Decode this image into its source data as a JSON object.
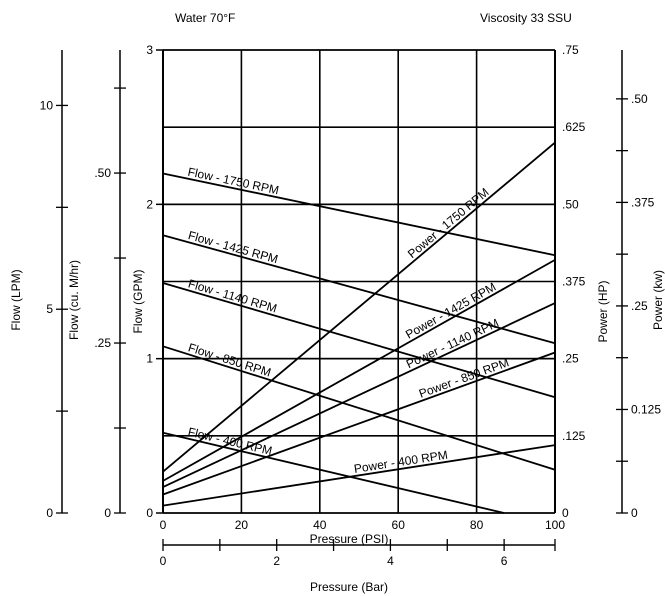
{
  "header": {
    "left": "Water 70°F",
    "right": "Viscosity 33 SSU"
  },
  "chart_data": {
    "type": "line",
    "x_axis": {
      "label": "Pressure (PSI)",
      "range": [
        0,
        100
      ],
      "ticks": [
        "0",
        "20",
        "40",
        "60",
        "80",
        "100"
      ]
    },
    "x_axis_secondary": {
      "label": "Pressure (Bar)",
      "range": [
        0,
        6.895
      ],
      "ticks": [
        "0",
        "2",
        "4",
        "6"
      ]
    },
    "y_axes_left": [
      {
        "label": "Flow (LPM)",
        "range": [
          0,
          11.36
        ],
        "ticks": [
          "0",
          "5",
          "10"
        ]
      },
      {
        "label": "Flow (cu. M/hr)",
        "range": [
          0,
          0.681
        ],
        "ticks": [
          "0",
          ".25",
          ".50"
        ]
      },
      {
        "label": "Flow (GPM)",
        "range": [
          0,
          3
        ],
        "ticks": [
          "0",
          "1",
          "2",
          "3"
        ]
      }
    ],
    "y_axes_right": [
      {
        "label": "Power (HP)",
        "range": [
          0,
          0.75
        ],
        "ticks": [
          "0",
          ".125",
          ".25",
          ".375",
          ".50",
          ".625",
          ".75"
        ]
      },
      {
        "label": "Power (kw)",
        "range": [
          0,
          0.559
        ],
        "ticks": [
          "0",
          "0.125",
          ".25",
          ".375",
          ".50"
        ]
      }
    ],
    "grid": true,
    "flow_series": [
      {
        "name": "Flow - 1750 RPM",
        "x": [
          0,
          100
        ],
        "y": [
          2.2,
          1.67
        ]
      },
      {
        "name": "Flow - 1425 RPM",
        "x": [
          0,
          100
        ],
        "y": [
          1.8,
          1.1
        ]
      },
      {
        "name": "Flow - 1140 RPM",
        "x": [
          0,
          100
        ],
        "y": [
          1.49,
          0.75
        ]
      },
      {
        "name": "Flow - 850 RPM",
        "x": [
          0,
          100
        ],
        "y": [
          1.08,
          0.28
        ]
      },
      {
        "name": "Flow - 400 RPM",
        "x": [
          0,
          87
        ],
        "y": [
          0.52,
          0.0
        ]
      }
    ],
    "power_series": [
      {
        "name": "Power - 1750 RPM",
        "x": [
          0,
          100
        ],
        "y": [
          0.067,
          0.6
        ]
      },
      {
        "name": "Power - 1425 RPM",
        "x": [
          0,
          100
        ],
        "y": [
          0.052,
          0.41
        ]
      },
      {
        "name": "Power - 1140 RPM",
        "x": [
          0,
          100
        ],
        "y": [
          0.042,
          0.34
        ]
      },
      {
        "name": "Power - 850 RPM",
        "x": [
          0,
          100
        ],
        "y": [
          0.03,
          0.26
        ]
      },
      {
        "name": "Power - 400 RPM",
        "x": [
          0,
          100
        ],
        "y": [
          0.012,
          0.11
        ]
      }
    ]
  }
}
